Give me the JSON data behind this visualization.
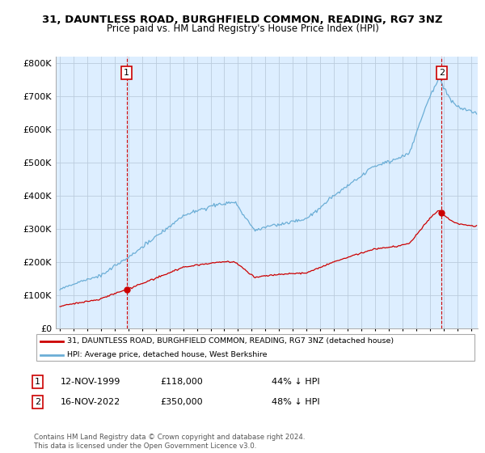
{
  "title": "31, DAUNTLESS ROAD, BURGHFIELD COMMON, READING, RG7 3NZ",
  "subtitle": "Price paid vs. HM Land Registry's House Price Index (HPI)",
  "ytick_values": [
    0,
    100000,
    200000,
    300000,
    400000,
    500000,
    600000,
    700000,
    800000
  ],
  "ylim": [
    0,
    820000
  ],
  "xlim_start": 1994.7,
  "xlim_end": 2025.5,
  "xtick_years": [
    1995,
    1996,
    1997,
    1998,
    1999,
    2000,
    2001,
    2002,
    2003,
    2004,
    2005,
    2006,
    2007,
    2008,
    2009,
    2010,
    2011,
    2012,
    2013,
    2014,
    2015,
    2016,
    2017,
    2018,
    2019,
    2020,
    2021,
    2022,
    2023,
    2024,
    2025
  ],
  "hpi_color": "#6baed6",
  "price_color": "#cc0000",
  "chart_bg": "#ddeeff",
  "sale1_year": 1999.87,
  "sale1_price": 118000,
  "sale1_date": "12-NOV-1999",
  "sale1_label": "44% ↓ HPI",
  "sale2_year": 2022.87,
  "sale2_price": 350000,
  "sale2_date": "16-NOV-2022",
  "sale2_label": "48% ↓ HPI",
  "legend_line1": "31, DAUNTLESS ROAD, BURGHFIELD COMMON, READING, RG7 3NZ (detached house)",
  "legend_line2": "HPI: Average price, detached house, West Berkshire",
  "footnote": "Contains HM Land Registry data © Crown copyright and database right 2024.\nThis data is licensed under the Open Government Licence v3.0.",
  "background_color": "#ffffff",
  "grid_color": "#bbccdd"
}
